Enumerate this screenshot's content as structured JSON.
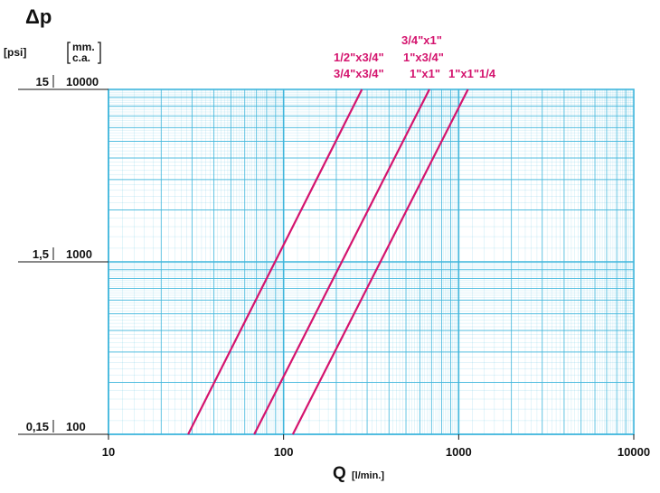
{
  "chart_data": {
    "type": "line",
    "x_scale": "log",
    "y_scale": "log",
    "xlim": [
      10,
      10000
    ],
    "ylim": [
      100,
      10000
    ],
    "grid": true,
    "y_symbol": "Δp",
    "y_unit_psi": "[psi]",
    "y_unit_mm_line1": "mm.",
    "y_unit_mm_line2": "c.a.",
    "x_label_main": "Q",
    "x_label_unit": "[l/min.]",
    "x_ticks": [
      "10",
      "100",
      "1000",
      "10000"
    ],
    "y_ticks_mm": [
      "10000",
      "1000",
      "100"
    ],
    "y_ticks_psi": [
      "15",
      "1,5",
      "0,15"
    ],
    "series_labels": [
      {
        "text": "3/4\"x1\""
      },
      {
        "text": "1/2\"x3/4\""
      },
      {
        "text": "1\"x3/4\""
      },
      {
        "text": "3/4\"x3/4\""
      },
      {
        "text": "1\"x1\""
      },
      {
        "text": "1\"x1\"1/4"
      }
    ],
    "series": [
      {
        "x": [
          28.5,
          280
        ],
        "y": [
          100,
          10000
        ]
      },
      {
        "x": [
          68,
          680
        ],
        "y": [
          100,
          10000
        ]
      },
      {
        "x": [
          113,
          1130
        ],
        "y": [
          100,
          10000
        ]
      }
    ],
    "colors": {
      "grid": "#3fb6dc",
      "line": "#d4146e",
      "text": "#111111"
    }
  }
}
